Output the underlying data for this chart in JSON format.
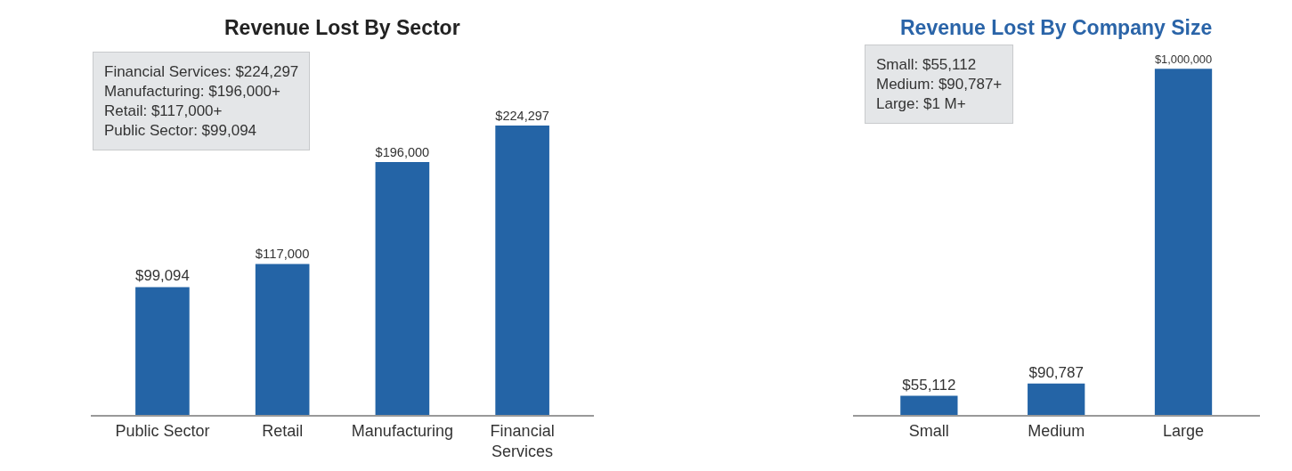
{
  "chart_data": [
    {
      "type": "bar",
      "title": "Revenue Lost By Sector",
      "categories": [
        "Public Sector",
        "Retail",
        "Manufacturing",
        "Financial Services"
      ],
      "values": [
        99094,
        117000,
        196000,
        224297
      ],
      "value_labels": [
        "$99,094",
        "$117,000",
        "$196,000",
        "$224,297"
      ],
      "color": "#2464a6",
      "annotations": [
        "Financial Services: $224,297",
        "Manufacturing: $196,000+",
        "Retail: $117,000+",
        "Public Sector: $99,094"
      ]
    },
    {
      "type": "bar",
      "title": "Revenue Lost By Company Size",
      "categories": [
        "Small",
        "Medium",
        "Large"
      ],
      "values": [
        55112,
        90787,
        1000000
      ],
      "value_labels": [
        "$55,112",
        "$90,787",
        "$1,000,000"
      ],
      "color": "#2464a6",
      "annotations": [
        "Small: $55,112",
        "Medium: $90,787+",
        "Large: $1 M+"
      ]
    }
  ]
}
